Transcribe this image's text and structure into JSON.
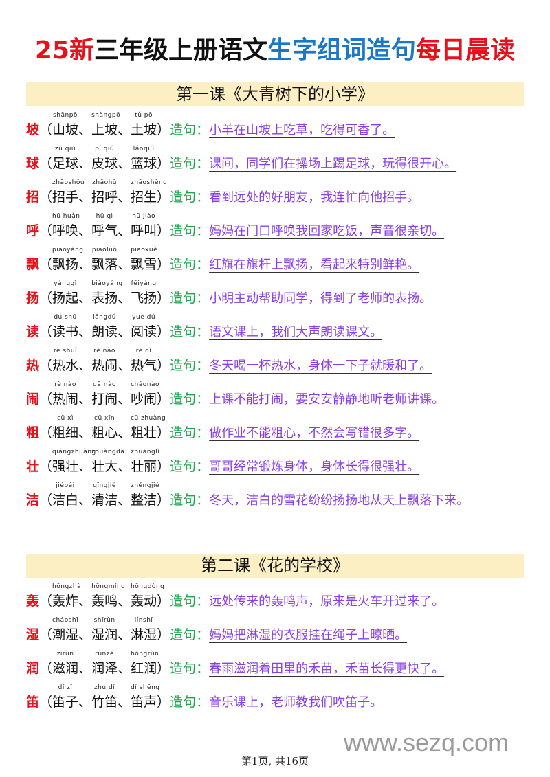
{
  "title": {
    "p1": "25新",
    "p2": "三年级上册语文",
    "p3": "生字组词造句",
    "p4": "每日晨读"
  },
  "colors": {
    "red": "#e8101a",
    "blue": "#1a78c8",
    "green": "#1aa84a",
    "purple": "#8a3ee6",
    "band": "#fcefc3"
  },
  "label": "造句：",
  "sections": [
    {
      "title": "第一课《大青树下的小学》",
      "rows": [
        {
          "char": "坡",
          "words": [
            [
              "山坡",
              "shānpō"
            ],
            [
              "上坡",
              "shàngpō"
            ],
            [
              "土坡",
              "tǔ pō"
            ]
          ],
          "sentence": "小羊在山坡上吃草，吃得可香了。"
        },
        {
          "char": "球",
          "words": [
            [
              "足球",
              "zú qiú"
            ],
            [
              "皮球",
              "pí qiú"
            ],
            [
              "篮球",
              "lánqiú"
            ]
          ],
          "sentence": "课间，同学们在操场上踢足球，玩得很开心。"
        },
        {
          "char": "招",
          "words": [
            [
              "招手",
              "zhāoshǒu"
            ],
            [
              "招呼",
              "zhāohū"
            ],
            [
              "招生",
              "zhāoshēng"
            ]
          ],
          "sentence": "看到远处的好朋友，我连忙向他招手。"
        },
        {
          "char": "呼",
          "words": [
            [
              "呼唤",
              "hū huàn"
            ],
            [
              "呼气",
              "hū qì"
            ],
            [
              "呼叫",
              "hū jiào"
            ]
          ],
          "sentence": "妈妈在门口呼唤我回家吃饭，声音很亲切。"
        },
        {
          "char": "飘",
          "words": [
            [
              "飘扬",
              "piāoyáng"
            ],
            [
              "飘落",
              "piāoluò"
            ],
            [
              "飘雪",
              "piāoxuě"
            ]
          ],
          "sentence": "红旗在旗杆上飘扬，看起来特别鲜艳。"
        },
        {
          "char": "扬",
          "words": [
            [
              "扬起",
              "yángqǐ"
            ],
            [
              "表扬",
              "biǎoyáng"
            ],
            [
              "飞扬",
              "fēiyáng"
            ]
          ],
          "sentence": "小明主动帮助同学，得到了老师的表扬。"
        },
        {
          "char": "读",
          "words": [
            [
              "读书",
              "dú shū"
            ],
            [
              "朗读",
              "lǎngdú"
            ],
            [
              "阅读",
              "yuè dú"
            ]
          ],
          "sentence": "语文课上，我们大声朗读课文。"
        },
        {
          "char": "热",
          "words": [
            [
              "热水",
              "rè shuǐ"
            ],
            [
              "热闹",
              "rè nào"
            ],
            [
              "热气",
              "rè qì"
            ]
          ],
          "sentence": "冬天喝一杯热水，身体一下子就暖和了。"
        },
        {
          "char": "闹",
          "words": [
            [
              "热闹",
              "rè nào"
            ],
            [
              "打闹",
              "dǎ nào"
            ],
            [
              "吵闹",
              "chǎonào"
            ]
          ],
          "sentence": "上课不能打闹，要安安静静地听老师讲课。"
        },
        {
          "char": "粗",
          "words": [
            [
              "粗细",
              "cū xì"
            ],
            [
              "粗心",
              "cū xīn"
            ],
            [
              "粗壮",
              "cū zhuàng"
            ]
          ],
          "sentence": "做作业不能粗心，不然会写错很多字。"
        },
        {
          "char": "壮",
          "words": [
            [
              "强壮",
              "qiángzhuàng"
            ],
            [
              "壮大",
              "zhuàngdà"
            ],
            [
              "壮丽",
              "zhuànglì"
            ]
          ],
          "sentence": "哥哥经常锻炼身体，身体长得很强壮。"
        },
        {
          "char": "洁",
          "words": [
            [
              "洁白",
              "jiébái"
            ],
            [
              "清洁",
              "qīngjié"
            ],
            [
              "整洁",
              "zhěngjié"
            ]
          ],
          "sentence": "冬天，洁白的雪花纷纷扬扬地从天上飘落下来。"
        }
      ]
    },
    {
      "title": "第二课《花的学校》",
      "rows": [
        {
          "char": "轰",
          "words": [
            [
              "轰炸",
              "hōngzhà"
            ],
            [
              "轰鸣",
              "hōngmíng"
            ],
            [
              "轰动",
              "hōngdòng"
            ]
          ],
          "sentence": "远处传来的轰鸣声，原来是火车开过来了。"
        },
        {
          "char": "湿",
          "words": [
            [
              "潮湿",
              "cháoshī"
            ],
            [
              "湿润",
              "shīrùn"
            ],
            [
              "淋湿",
              "línshī"
            ]
          ],
          "sentence": "妈妈把淋湿的衣服挂在绳子上晾晒。"
        },
        {
          "char": "润",
          "words": [
            [
              "滋润",
              "zīrùn"
            ],
            [
              "润泽",
              "rùnzé"
            ],
            [
              "红润",
              "hóngrùn"
            ]
          ],
          "sentence": "春雨滋润着田里的禾苗，禾苗长得更快了。"
        },
        {
          "char": "笛",
          "words": [
            [
              "笛子",
              "dí zǐ"
            ],
            [
              "竹笛",
              "zhú dí"
            ],
            [
              "笛声",
              "dí shēng"
            ]
          ],
          "sentence": "音乐课上，老师教我们吹笛子。"
        }
      ]
    }
  ],
  "footer": "第1页, 共16页",
  "watermark": "www.sezq.com"
}
